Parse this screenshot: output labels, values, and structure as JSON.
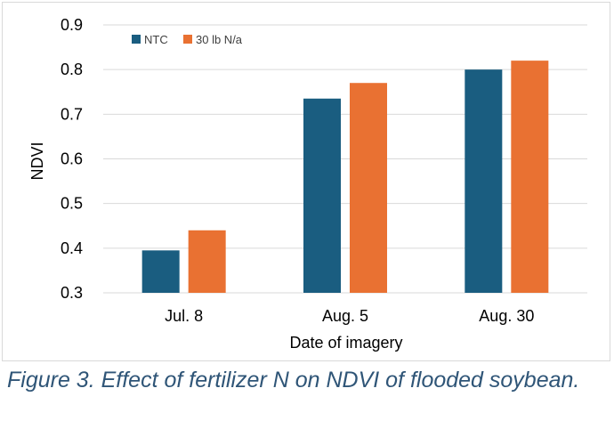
{
  "caption": "Figure 3. Effect of fertilizer N on NDVI of flooded soybean.",
  "chart_data": {
    "type": "bar",
    "categories": [
      "Jul. 8",
      "Aug. 5",
      "Aug. 30"
    ],
    "series": [
      {
        "name": "NTC",
        "values": [
          0.395,
          0.735,
          0.8
        ],
        "color": "#1a5d80"
      },
      {
        "name": "30 lb N/a",
        "values": [
          0.44,
          0.77,
          0.82
        ],
        "color": "#e97132"
      }
    ],
    "xlabel": "Date of imagery",
    "ylabel": "NDVI",
    "ylim": [
      0.3,
      0.9
    ],
    "yticks": [
      0.3,
      0.4,
      0.5,
      0.6,
      0.7,
      0.8,
      0.9
    ],
    "ytick_labels": [
      "0.3",
      "0.4",
      "0.5",
      "0.6",
      "0.7",
      "0.8",
      "0.9"
    ],
    "grid": true,
    "legend_position": "top-left",
    "gridline_color": "#d9d9d9"
  }
}
